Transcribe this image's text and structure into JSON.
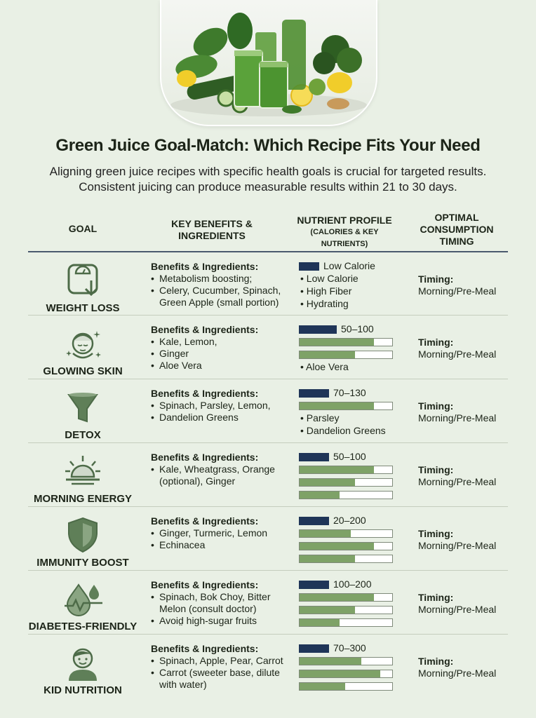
{
  "title": "Green Juice Goal-Match: Which Recipe Fits Your Need",
  "intro": [
    "Aligning green juice recipes with specific health goals is crucial for targeted results.",
    "Consistent juicing can produce measurable results within 21 to 30 days."
  ],
  "headers": {
    "goal": "GOAL",
    "benefits": [
      "KEY BENEFITS &",
      "INGREDIENTS"
    ],
    "nutrient": "NUTRIENT PROFILE",
    "nutrient_sub": [
      "(CALORIES & KEY",
      "NUTRIENTS)"
    ],
    "timing": [
      "OPTIMAL",
      "CONSUMPTION",
      "TIMING"
    ]
  },
  "benefits_heading": "Benefits & Ingredients:",
  "timing_heading": "Timing:",
  "colors": {
    "navy": "#1f3558",
    "green": "#7ea267",
    "icon": "#4d6b48"
  },
  "rows": [
    {
      "goal": "WEIGHT LOSS",
      "icon": "scale-icon",
      "benefits": [
        "Metabolism boosting;",
        "Celery, Cucumber, Spinach, Green Apple (small portion)"
      ],
      "calories": "Low Calorie",
      "bars": [
        0.22
      ],
      "nutrients": [
        "Low Calorie",
        "High Fiber",
        "Hydrating"
      ],
      "timing": "Morning/Pre-Meal"
    },
    {
      "goal": "GLOWING SKIN",
      "icon": "face-sparkle-icon",
      "benefits": [
        "Kale, Lemon,",
        "Ginger",
        "Aloe Vera"
      ],
      "calories": "50–100",
      "bars": [
        0.4,
        0.8,
        0.6
      ],
      "nutrients": [
        "Aloe Vera"
      ],
      "timing": "Morning/Pre-Meal"
    },
    {
      "goal": "DETOX",
      "icon": "funnel-icon",
      "benefits": [
        "Spinach, Parsley, Lemon,",
        "Dandelion Greens"
      ],
      "calories": "70–130",
      "bars": [
        0.32,
        0.8
      ],
      "nutrients": [
        "Parsley",
        "Dandelion Greens"
      ],
      "timing": "Morning/Pre-Meal"
    },
    {
      "goal": "MORNING ENERGY",
      "icon": "sunrise-icon",
      "benefits": [
        "Kale, Wheatgrass, Orange (optional), Ginger"
      ],
      "calories": "50–100",
      "bars": [
        0.32,
        0.8,
        0.6,
        0.43
      ],
      "nutrients": [],
      "timing": "Morning/Pre-Meal"
    },
    {
      "goal": "IMMUNITY BOOST",
      "icon": "shield-icon",
      "benefits": [
        "Ginger, Turmeric, Lemon",
        "Echinacea"
      ],
      "calories": "20–200",
      "bars": [
        0.32,
        0.55,
        0.8,
        0.6
      ],
      "nutrients": [],
      "timing": "Morning/Pre-Meal"
    },
    {
      "goal": "DIABETES-FRIENDLY",
      "icon": "drops-heartbeat-icon",
      "benefits": [
        "Spinach, Bok Choy, Bitter Melon (consult doctor)",
        "Avoid̤ high-sugar fruits"
      ],
      "calories": "100–200",
      "bars": [
        0.32,
        0.8,
        0.6,
        0.43
      ],
      "nutrients": [],
      "timing": "Morning/Pre-Meal"
    },
    {
      "goal": "KID NUTRITION",
      "icon": "child-icon",
      "benefits": [
        "Spinach, Apple, Pear, Carrot",
        "Carrot (sweeter base, dilute with water)"
      ],
      "calories": "70–300",
      "bars": [
        0.32,
        0.67,
        0.87,
        0.49
      ],
      "nutrients": [],
      "timing": "Morning/Pre-Meal"
    }
  ]
}
